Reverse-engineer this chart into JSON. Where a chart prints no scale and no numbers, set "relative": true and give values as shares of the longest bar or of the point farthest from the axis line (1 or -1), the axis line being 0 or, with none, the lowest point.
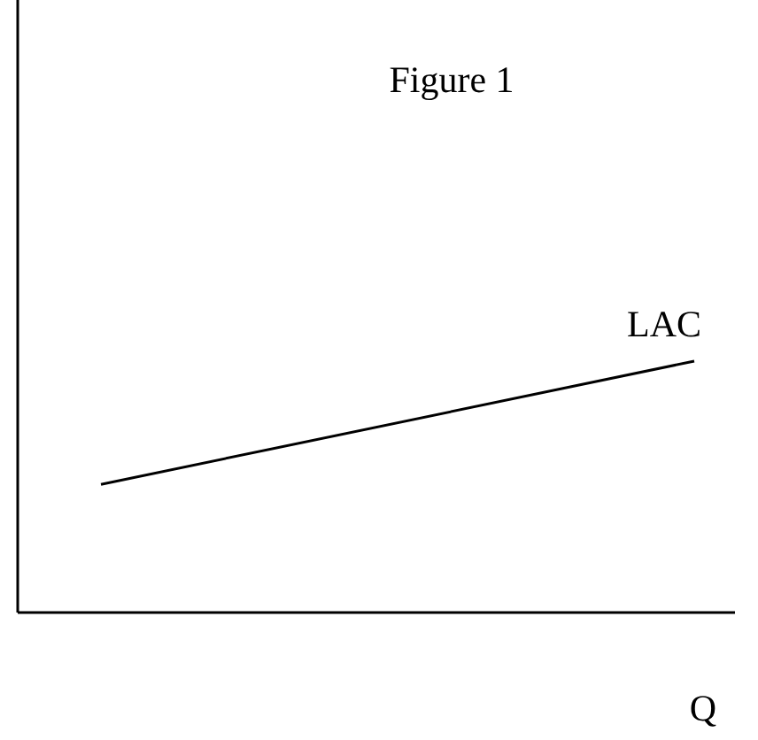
{
  "chart_data": {
    "type": "line",
    "title": "Figure 1",
    "xlabel": "Q",
    "relative": true,
    "categories": [
      null,
      null
    ],
    "series": [
      {
        "name": "LAC",
        "color": "#000000",
        "values": [
          0.51,
          1
        ]
      }
    ]
  }
}
